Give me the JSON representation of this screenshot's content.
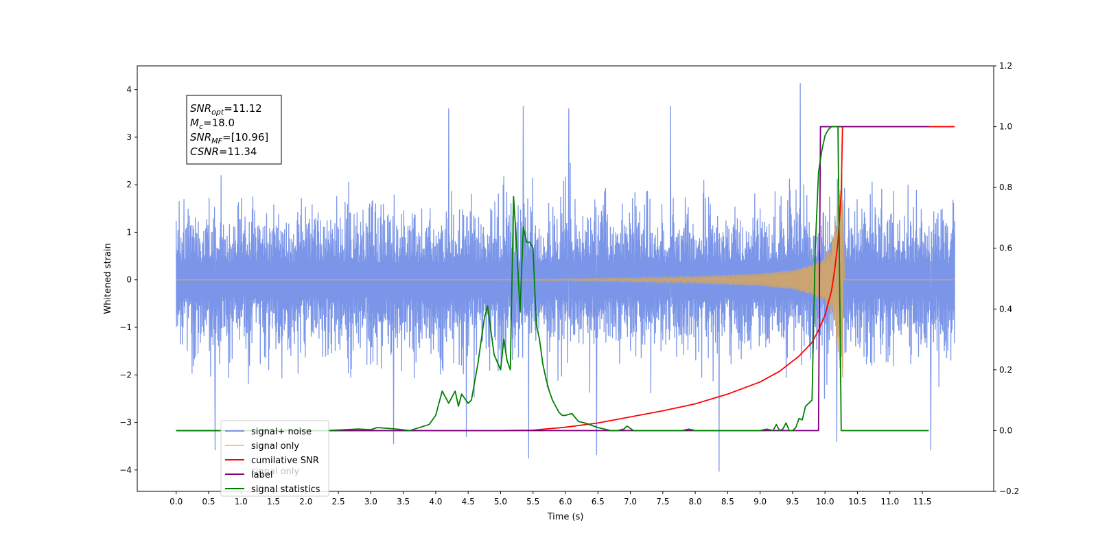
{
  "chart_data": {
    "type": "line",
    "xlabel": "Time (s)",
    "ylabel": "Whitened strain",
    "xlim": [
      -0.6,
      12.6
    ],
    "ylim": [
      -4.45,
      4.5
    ],
    "y2lim": [
      -0.2,
      1.2
    ],
    "x_ticks": [
      "0.0",
      "0.5",
      "1.0",
      "1.5",
      "2.0",
      "2.5",
      "3.0",
      "3.5",
      "4.0",
      "4.5",
      "5.0",
      "5.5",
      "6.0",
      "6.5",
      "7.0",
      "7.5",
      "8.0",
      "8.5",
      "9.0",
      "9.5",
      "10.0",
      "10.5",
      "11.0",
      "11.5"
    ],
    "y_ticks": [
      {
        "v": 4,
        "t": "4"
      },
      {
        "v": 3,
        "t": "3"
      },
      {
        "v": 2,
        "t": "2"
      },
      {
        "v": 1,
        "t": "1"
      },
      {
        "v": 0,
        "t": "0"
      },
      {
        "v": -1,
        "t": "−1"
      },
      {
        "v": -2,
        "t": "−2"
      },
      {
        "v": -3,
        "t": "−3"
      },
      {
        "v": -4,
        "t": "−4"
      }
    ],
    "y2_ticks": [
      {
        "v": 1.2,
        "t": "1.2"
      },
      {
        "v": 1.0,
        "t": "1.0"
      },
      {
        "v": 0.8,
        "t": "0.8"
      },
      {
        "v": 0.6,
        "t": "0.6"
      },
      {
        "v": 0.4,
        "t": "0.4"
      },
      {
        "v": 0.2,
        "t": "0.2"
      },
      {
        "v": 0.0,
        "t": "0.0"
      },
      {
        "v": -0.2,
        "t": "−0.2"
      }
    ],
    "annotation": {
      "lines": [
        {
          "var": "SNR",
          "sub": "opt",
          "rest": "=11.12"
        },
        {
          "var": "M",
          "sub": "c",
          "rest": "=18.0"
        },
        {
          "var": "SNR",
          "sub": "MF",
          "rest": "=[10.96]"
        },
        {
          "var": "CSNR",
          "sub": "",
          "rest": "=11.34"
        }
      ]
    },
    "legend": {
      "placement": "lower-left",
      "entries": [
        {
          "label": "signal+ noise",
          "color": "#7b96e8"
        },
        {
          "label": "signal only",
          "color": "#ffc868"
        },
        {
          "label": "cumilative SNR",
          "color": "#ff0000"
        },
        {
          "label": "label",
          "color": "#7b007b"
        },
        {
          "label": "signal statistics",
          "color": "#008000"
        }
      ],
      "hidden_text": [
        "signal only"
      ]
    },
    "series": [
      {
        "name": "signal+ noise",
        "axis": "left",
        "color": "#7b96e8",
        "envelope": {
          "x_start": 0.0,
          "x_end": 12.0,
          "typical_abs": 1.7,
          "peak_abs": 4.1
        },
        "extremes": [
          {
            "x": 9.62,
            "y": 4.13
          },
          {
            "x": 8.37,
            "y": -4.03
          },
          {
            "x": 0.6,
            "y": -3.58
          },
          {
            "x": 5.43,
            "y": -3.75
          },
          {
            "x": 11.63,
            "y": -3.58
          },
          {
            "x": 10.18,
            "y": -3.4
          },
          {
            "x": 6.48,
            "y": -3.68
          },
          {
            "x": 4.47,
            "y": -3.3
          },
          {
            "x": 3.35,
            "y": -3.45
          },
          {
            "x": 4.2,
            "y": 3.6
          },
          {
            "x": 5.35,
            "y": 3.65
          },
          {
            "x": 6.05,
            "y": 3.6
          },
          {
            "x": 7.62,
            "y": 3.65
          }
        ]
      },
      {
        "name": "signal only",
        "axis": "left",
        "color": "#d0a46a",
        "x": [
          0.0,
          5.0,
          6.0,
          7.0,
          8.0,
          9.0,
          9.5,
          9.8,
          10.0,
          10.1,
          10.2,
          10.27,
          10.3,
          12.0
        ],
        "amplitude": [
          0.0,
          0.0,
          0.02,
          0.04,
          0.07,
          0.13,
          0.2,
          0.32,
          0.5,
          0.7,
          1.6,
          2.3,
          0.0,
          0.0
        ]
      },
      {
        "name": "cumilative SNR",
        "axis": "right",
        "color": "#ff0000",
        "x": [
          0.0,
          5.0,
          5.5,
          6.0,
          6.5,
          7.0,
          7.5,
          8.0,
          8.5,
          9.0,
          9.3,
          9.6,
          9.8,
          9.9,
          10.0,
          10.1,
          10.15,
          10.2,
          10.25,
          10.27,
          10.3,
          12.0
        ],
        "values": [
          0.0,
          0.0,
          0.0015,
          0.011,
          0.025,
          0.045,
          0.065,
          0.088,
          0.12,
          0.16,
          0.195,
          0.245,
          0.29,
          0.33,
          0.38,
          0.46,
          0.53,
          0.62,
          0.78,
          1.0,
          1.0,
          1.0
        ]
      },
      {
        "name": "label",
        "axis": "right",
        "color": "#7b007b",
        "x": [
          0.0,
          9.9,
          9.93,
          10.27,
          10.3,
          11.6
        ],
        "values": [
          0.0,
          0.0,
          1.0,
          1.0,
          1.0,
          1.0
        ]
      },
      {
        "name": "signal statistics",
        "axis": "right",
        "color": "#008000",
        "x": [
          0.0,
          2.3,
          2.6,
          2.8,
          3.0,
          3.1,
          3.4,
          3.6,
          3.9,
          4.0,
          4.1,
          4.2,
          4.3,
          4.35,
          4.4,
          4.5,
          4.55,
          4.65,
          4.75,
          4.8,
          4.9,
          5.0,
          5.05,
          5.1,
          5.15,
          5.2,
          5.25,
          5.3,
          5.35,
          5.4,
          5.45,
          5.5,
          5.55,
          5.6,
          5.65,
          5.7,
          5.75,
          5.8,
          5.85,
          5.9,
          5.95,
          6.0,
          6.1,
          6.2,
          6.3,
          6.5,
          6.7,
          6.8,
          6.9,
          6.95,
          7.0,
          7.05,
          7.2,
          7.5,
          7.8,
          7.9,
          8.0,
          8.1,
          8.2,
          8.8,
          9.0,
          9.1,
          9.2,
          9.25,
          9.3,
          9.35,
          9.4,
          9.45,
          9.5,
          9.55,
          9.6,
          9.65,
          9.7,
          9.75,
          9.8,
          9.85,
          9.9,
          9.95,
          10.0,
          10.05,
          10.1,
          10.15,
          10.2,
          10.25,
          10.27,
          10.3,
          10.35,
          11.6
        ],
        "values": [
          0.0,
          0.0,
          0.003,
          0.005,
          0.003,
          0.01,
          0.005,
          0.0,
          0.02,
          0.05,
          0.13,
          0.09,
          0.13,
          0.08,
          0.12,
          0.09,
          0.1,
          0.22,
          0.37,
          0.41,
          0.25,
          0.2,
          0.3,
          0.23,
          0.2,
          0.77,
          0.6,
          0.39,
          0.67,
          0.62,
          0.62,
          0.6,
          0.35,
          0.3,
          0.22,
          0.17,
          0.13,
          0.1,
          0.08,
          0.06,
          0.05,
          0.05,
          0.056,
          0.03,
          0.025,
          0.01,
          0.0,
          0.0,
          0.005,
          0.015,
          0.007,
          0.0,
          0.0,
          0.0,
          0.0,
          0.005,
          0.0,
          0.0,
          0.0,
          0.0,
          0.0,
          0.005,
          0.0,
          0.02,
          0.0,
          0.005,
          0.025,
          0.0,
          0.0,
          0.01,
          0.04,
          0.035,
          0.08,
          0.09,
          0.1,
          0.6,
          0.85,
          0.92,
          0.97,
          0.99,
          1.0,
          1.0,
          1.0,
          0.0,
          0.0,
          0.0,
          0.0,
          0.0
        ]
      }
    ]
  }
}
